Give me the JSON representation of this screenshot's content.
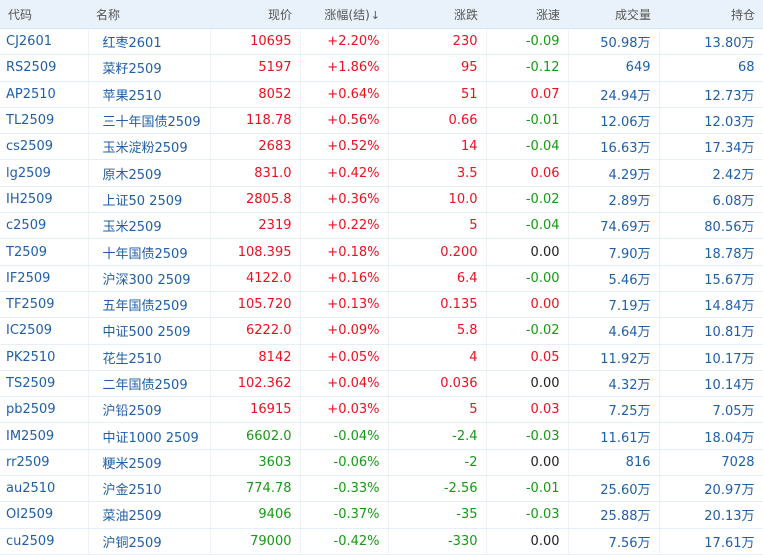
{
  "header": {
    "code": "代码",
    "name": "名称",
    "price": "现价",
    "change_pct": "涨幅(结)",
    "change": "涨跌",
    "speed": "涨速",
    "volume": "成交量",
    "open_interest": "持仓",
    "sort_indicator": "↓"
  },
  "rows": [
    {
      "code": "CJ2601",
      "name": "红枣2601",
      "price": "10695",
      "change_pct": "+2.20%",
      "change": "230",
      "speed": "-0.09",
      "volume": "50.98万",
      "open_interest": "13.80万",
      "trend": "up",
      "speed_trend": "down"
    },
    {
      "code": "RS2509",
      "name": "菜籽2509",
      "price": "5197",
      "change_pct": "+1.86%",
      "change": "95",
      "speed": "-0.12",
      "volume": "649",
      "open_interest": "68",
      "trend": "up",
      "speed_trend": "down"
    },
    {
      "code": "AP2510",
      "name": "苹果2510",
      "price": "8052",
      "change_pct": "+0.64%",
      "change": "51",
      "speed": "0.07",
      "volume": "24.94万",
      "open_interest": "12.73万",
      "trend": "up",
      "speed_trend": "up"
    },
    {
      "code": "TL2509",
      "name": "三十年国债2509",
      "price": "118.78",
      "change_pct": "+0.56%",
      "change": "0.66",
      "speed": "-0.01",
      "volume": "12.06万",
      "open_interest": "12.03万",
      "trend": "up",
      "speed_trend": "down"
    },
    {
      "code": "cs2509",
      "name": "玉米淀粉2509",
      "price": "2683",
      "change_pct": "+0.52%",
      "change": "14",
      "speed": "-0.04",
      "volume": "16.63万",
      "open_interest": "17.34万",
      "trend": "up",
      "speed_trend": "down"
    },
    {
      "code": "lg2509",
      "name": "原木2509",
      "price": "831.0",
      "change_pct": "+0.42%",
      "change": "3.5",
      "speed": "0.06",
      "volume": "4.29万",
      "open_interest": "2.42万",
      "trend": "up",
      "speed_trend": "up"
    },
    {
      "code": "IH2509",
      "name": "上证50 2509",
      "price": "2805.8",
      "change_pct": "+0.36%",
      "change": "10.0",
      "speed": "-0.02",
      "volume": "2.89万",
      "open_interest": "6.08万",
      "trend": "up",
      "speed_trend": "down"
    },
    {
      "code": "c2509",
      "name": "玉米2509",
      "price": "2319",
      "change_pct": "+0.22%",
      "change": "5",
      "speed": "-0.04",
      "volume": "74.69万",
      "open_interest": "80.56万",
      "trend": "up",
      "speed_trend": "down"
    },
    {
      "code": "T2509",
      "name": "十年国债2509",
      "price": "108.395",
      "change_pct": "+0.18%",
      "change": "0.200",
      "speed": "0.00",
      "volume": "7.90万",
      "open_interest": "18.78万",
      "trend": "up",
      "speed_trend": "flat"
    },
    {
      "code": "IF2509",
      "name": "沪深300 2509",
      "price": "4122.0",
      "change_pct": "+0.16%",
      "change": "6.4",
      "speed": "-0.00",
      "volume": "5.46万",
      "open_interest": "15.67万",
      "trend": "up",
      "speed_trend": "down"
    },
    {
      "code": "TF2509",
      "name": "五年国债2509",
      "price": "105.720",
      "change_pct": "+0.13%",
      "change": "0.135",
      "speed": "0.00",
      "volume": "7.19万",
      "open_interest": "14.84万",
      "trend": "up",
      "speed_trend": "up"
    },
    {
      "code": "IC2509",
      "name": "中证500 2509",
      "price": "6222.0",
      "change_pct": "+0.09%",
      "change": "5.8",
      "speed": "-0.02",
      "volume": "4.64万",
      "open_interest": "10.81万",
      "trend": "up",
      "speed_trend": "down"
    },
    {
      "code": "PK2510",
      "name": "花生2510",
      "price": "8142",
      "change_pct": "+0.05%",
      "change": "4",
      "speed": "0.05",
      "volume": "11.92万",
      "open_interest": "10.17万",
      "trend": "up",
      "speed_trend": "up"
    },
    {
      "code": "TS2509",
      "name": "二年国债2509",
      "price": "102.362",
      "change_pct": "+0.04%",
      "change": "0.036",
      "speed": "0.00",
      "volume": "4.32万",
      "open_interest": "10.14万",
      "trend": "up",
      "speed_trend": "flat"
    },
    {
      "code": "pb2509",
      "name": "沪铅2509",
      "price": "16915",
      "change_pct": "+0.03%",
      "change": "5",
      "speed": "0.03",
      "volume": "7.25万",
      "open_interest": "7.05万",
      "trend": "up",
      "speed_trend": "up"
    },
    {
      "code": "IM2509",
      "name": "中证1000 2509",
      "price": "6602.0",
      "change_pct": "-0.04%",
      "change": "-2.4",
      "speed": "-0.03",
      "volume": "11.61万",
      "open_interest": "18.04万",
      "trend": "down",
      "speed_trend": "down"
    },
    {
      "code": "rr2509",
      "name": "粳米2509",
      "price": "3603",
      "change_pct": "-0.06%",
      "change": "-2",
      "speed": "0.00",
      "volume": "816",
      "open_interest": "7028",
      "trend": "down",
      "speed_trend": "flat"
    },
    {
      "code": "au2510",
      "name": "沪金2510",
      "price": "774.78",
      "change_pct": "-0.33%",
      "change": "-2.56",
      "speed": "-0.01",
      "volume": "25.60万",
      "open_interest": "20.97万",
      "trend": "down",
      "speed_trend": "down"
    },
    {
      "code": "OI2509",
      "name": "菜油2509",
      "price": "9406",
      "change_pct": "-0.37%",
      "change": "-35",
      "speed": "-0.03",
      "volume": "25.88万",
      "open_interest": "20.13万",
      "trend": "down",
      "speed_trend": "down"
    },
    {
      "code": "cu2509",
      "name": "沪铜2509",
      "price": "79000",
      "change_pct": "-0.42%",
      "change": "-330",
      "speed": "0.00",
      "volume": "7.56万",
      "open_interest": "17.61万",
      "trend": "down",
      "speed_trend": "flat"
    }
  ],
  "colors": {
    "up": "#e8111f",
    "down": "#159a15",
    "flat": "#222222",
    "link": "#1f5fa8",
    "header_bg": "#e9f2fb"
  }
}
